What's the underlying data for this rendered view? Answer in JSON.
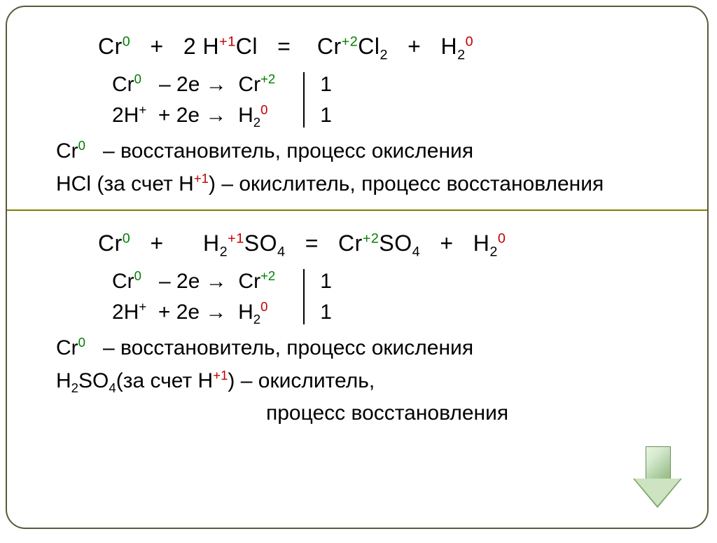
{
  "colors": {
    "superscript_green": "#008000",
    "superscript_red": "#c00000",
    "border": "#5a5a3a",
    "divider": "#808000",
    "text": "#000000",
    "arrow_fill_light": "#cde3c1",
    "arrow_fill_dark": "#7aa968",
    "arrow_border": "#6a8f5a"
  },
  "fonts": {
    "main_size_pt": 24,
    "family": "Arial",
    "sup_sub_ratio": 0.62
  },
  "section1": {
    "equation": {
      "lhs1_species": "Cr",
      "lhs1_charge": "0",
      "plus1": "+",
      "lhs2_coef": "2",
      "lhs2_species_h": "H",
      "lhs2_h_charge": "+1",
      "lhs2_species_cl": "Cl",
      "eq": "=",
      "rhs1_species": "Cr",
      "rhs1_charge": "+2",
      "rhs1_cl": "Cl",
      "rhs1_cl_sub": "2",
      "plus2": "+",
      "rhs2_h": "H",
      "rhs2_h_sub": "2",
      "rhs2_charge": "0"
    },
    "half1": {
      "species_l": "Cr",
      "charge_l": "0",
      "minus_e": "–  2e →",
      "species_r": "Cr",
      "charge_r": "+2",
      "factor": "1"
    },
    "half2": {
      "coef_l": "2",
      "species_l": "H",
      "charge_l": "+",
      "plus_e": "+  2e →",
      "species_r": "H",
      "sub_r": "2",
      "charge_r": "0",
      "factor": "1"
    },
    "desc1": {
      "species": "Cr",
      "charge": "0",
      "text": "– восстановитель, процесс окисления"
    },
    "desc2": {
      "lead": "HCl (за счет ",
      "species": "H",
      "charge": "+1",
      "tail": ")  – окислитель, процесс восстановления"
    }
  },
  "section2": {
    "equation": {
      "lhs1_species": "Cr",
      "lhs1_charge": "0",
      "plus1": "+",
      "lhs2_h": "H",
      "lhs2_h_sub": "2",
      "lhs2_h_charge": "+1",
      "lhs2_so": "SO",
      "lhs2_so_sub": "4",
      "eq": "=",
      "rhs1_species": "Cr",
      "rhs1_charge": "+2",
      "rhs1_so": "SO",
      "rhs1_so_sub": "4",
      "plus2": "+",
      "rhs2_h": "H",
      "rhs2_h_sub": "2",
      "rhs2_charge": "0"
    },
    "half1": {
      "species_l": "Cr",
      "charge_l": "0",
      "minus_e": "–  2e →",
      "species_r": "Cr",
      "charge_r": "+2",
      "factor": "1"
    },
    "half2": {
      "coef_l": "2",
      "species_l": "H",
      "charge_l": "+",
      "plus_e": "+  2e →",
      "species_r": "H",
      "sub_r": "2",
      "charge_r": "0",
      "factor": "1"
    },
    "desc1": {
      "species": "Cr",
      "charge": "0",
      "text": "– восстановитель, процесс окисления"
    },
    "desc2a": {
      "lead_h": "H",
      "lead_h_sub": "2",
      "lead_so": "SO",
      "lead_so_sub": "4",
      "mid": "(за счет ",
      "species": "H",
      "charge": "+1",
      "tail": ")  – окислитель,"
    },
    "desc2b": "процесс восстановления"
  }
}
